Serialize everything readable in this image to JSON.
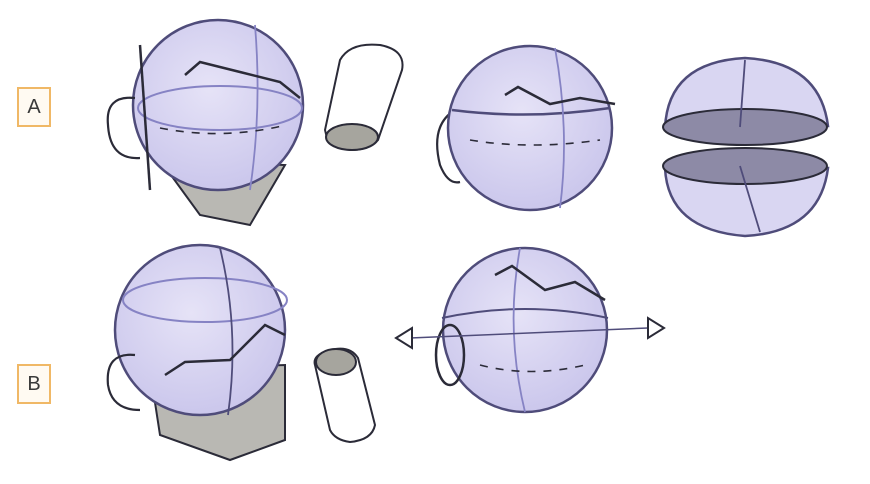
{
  "labels": {
    "a": "A",
    "b": "B"
  },
  "colors": {
    "label_border": "#f0b866",
    "sphere_fill": "#d9d6f2",
    "shade_fill": "#8d8aa6",
    "jaw_fill": "#b9b8b3",
    "ink": "#2b2b38",
    "blue_line": "#8683c4"
  }
}
